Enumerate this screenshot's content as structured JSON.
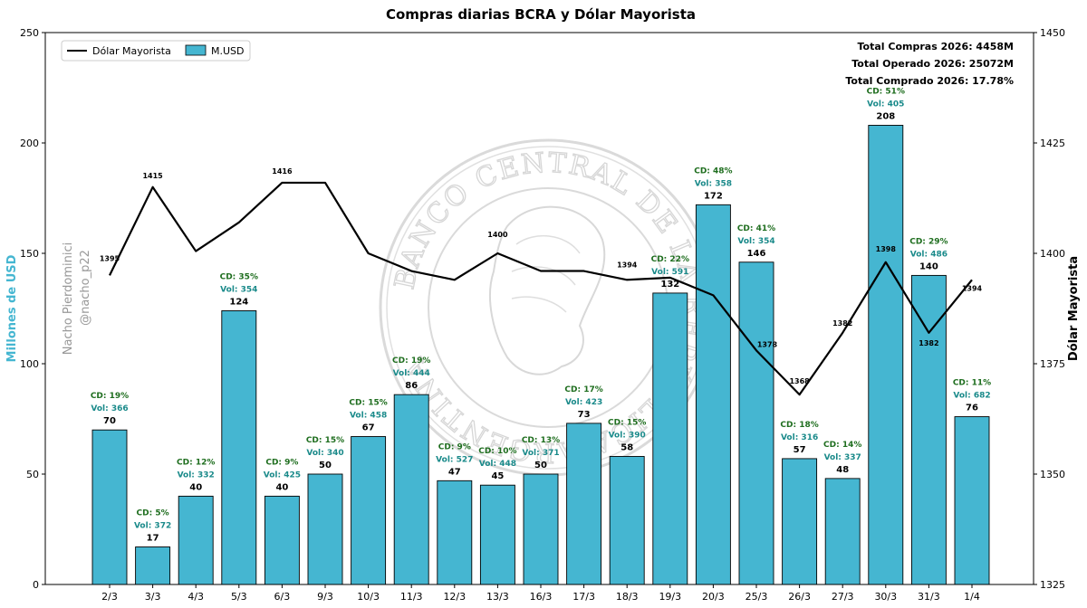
{
  "chart_data": {
    "type": "bar",
    "title": "Compras diarias BCRA y Dólar Mayorista",
    "categories": [
      "2/3",
      "3/3",
      "4/3",
      "5/3",
      "6/3",
      "9/3",
      "10/3",
      "11/3",
      "12/3",
      "13/3",
      "16/3",
      "17/3",
      "18/3",
      "19/3",
      "20/3",
      "25/3",
      "26/3",
      "27/3",
      "30/3",
      "31/3",
      "1/4"
    ],
    "ylabel": "Millones de USD",
    "ylim": [
      0,
      250
    ],
    "yticks": [
      0,
      50,
      100,
      150,
      200,
      250
    ],
    "y2label": "Dólar Mayorista",
    "y2lim": [
      1325,
      1450
    ],
    "y2ticks": [
      1325,
      1350,
      1375,
      1400,
      1425,
      1450
    ],
    "grid": false,
    "legend_position": "top-left",
    "series": [
      {
        "name": "M.USD",
        "type": "bar",
        "axis": "left",
        "color": "#45b6d1",
        "values": [
          70,
          17,
          40,
          124,
          40,
          50,
          67,
          86,
          47,
          45,
          50,
          73,
          58,
          132,
          172,
          146,
          57,
          48,
          208,
          140,
          76
        ],
        "cd_labels": [
          "CD: 19%",
          "CD: 5%",
          "CD: 12%",
          "CD: 35%",
          "CD: 9%",
          "CD: 15%",
          "CD: 15%",
          "CD: 19%",
          "CD: 9%",
          "CD: 10%",
          "CD: 13%",
          "CD: 17%",
          "CD: 15%",
          "CD: 22%",
          "CD: 48%",
          "CD: 41%",
          "CD: 18%",
          "CD: 14%",
          "CD: 51%",
          "CD: 29%",
          "CD: 11%"
        ],
        "vol_labels": [
          "Vol: 366",
          "Vol: 372",
          "Vol: 332",
          "Vol: 354",
          "Vol: 425",
          "Vol: 340",
          "Vol: 458",
          "Vol: 444",
          "Vol: 527",
          "Vol: 448",
          "Vol: 371",
          "Vol: 423",
          "Vol: 390",
          "Vol: 591",
          "Vol: 358",
          "Vol: 354",
          "Vol: 316",
          "Vol: 337",
          "Vol: 405",
          "Vol: 486",
          "Vol: 682"
        ]
      },
      {
        "name": "Dólar Mayorista",
        "type": "line",
        "axis": "right",
        "color": "#000000",
        "values": [
          1395,
          1415,
          1400.5,
          1407,
          1416,
          1416,
          1400,
          1396,
          1394,
          1400,
          1396,
          1396,
          1394,
          1394.5,
          1390.5,
          1378,
          1368,
          1382,
          1398,
          1382,
          1394
        ],
        "point_labels": [
          "1395",
          "1415",
          "",
          "",
          "1416",
          "",
          "",
          "",
          "",
          "1400",
          "",
          "",
          "1394",
          "",
          "",
          "1378",
          "1368",
          "1382",
          "1398",
          "1382",
          "1394"
        ]
      }
    ],
    "annotations": [
      "Total Compras 2026: 4458M",
      "Total Operado 2026: 25072M",
      "Total Comprado 2026: 17.78%"
    ],
    "author": [
      "Nacho Pierdominici",
      "@nacho_p22"
    ],
    "watermark": "BANCO CENTRAL DE LA REPÚBLICA ARGENTINA",
    "colors": {
      "cd": "#1f6e1f",
      "vol": "#1a8a8a",
      "ylabel": "#45b6d1"
    }
  }
}
